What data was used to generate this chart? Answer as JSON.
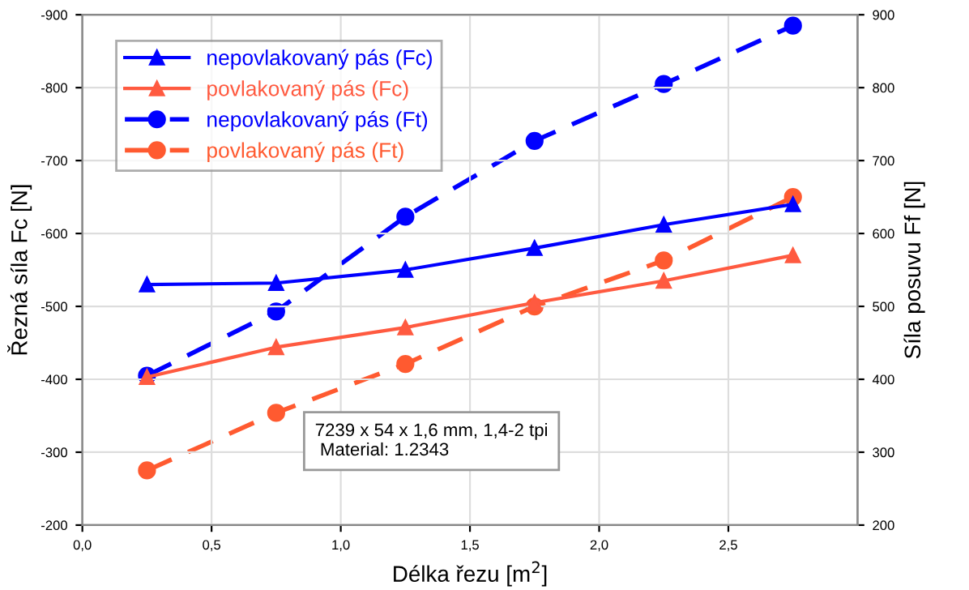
{
  "chart_data": {
    "type": "line",
    "xlabel": "Délka řezu [m$^{2}$]",
    "ylabel": "Řezná síla Fc [N]",
    "y2label": "Síla posuvu Ff [N]",
    "x": [
      0.25,
      0.75,
      1.25,
      1.75,
      2.25,
      2.75
    ],
    "series": [
      {
        "name": "nepovlakovaný pás (Fc)",
        "color": "#0000ff",
        "values": [
          -530,
          -532,
          -550,
          -580,
          -612,
          -640
        ],
        "marker": "triangle",
        "line_style": "solid"
      },
      {
        "name": "povlakovaný pás (Fc)",
        "color": "#ff5a40",
        "values": [
          -403,
          -444,
          -471,
          -505,
          -535,
          -570
        ],
        "marker": "triangle",
        "line_style": "solid"
      },
      {
        "name": "nepovlakovaný pás (Ft)",
        "color": "#0000ff",
        "values": [
          405,
          493,
          623,
          727,
          805,
          885
        ],
        "marker": "circle",
        "line_style": "dashed",
        "axis": "y2"
      },
      {
        "name": "povlakovaný pás (Ft)",
        "color": "#ff5a30",
        "values": [
          275,
          354,
          421,
          500,
          563,
          650
        ],
        "marker": "circle",
        "line_style": "dashed",
        "axis": "y2"
      }
    ],
    "xlim": [
      0,
      3
    ],
    "xticks": [
      {
        "value": 0,
        "label": "0,0"
      },
      {
        "value": 0.5,
        "label": "0,5"
      },
      {
        "value": 1,
        "label": "1,0"
      },
      {
        "value": 1.5,
        "label": "1,5"
      },
      {
        "value": 2,
        "label": "2,0"
      },
      {
        "value": 2.5,
        "label": "2,5"
      }
    ],
    "ylim": [
      -200,
      -900
    ],
    "yticks": [
      -200,
      -300,
      -400,
      -500,
      -600,
      -700,
      -800,
      -900
    ],
    "y2lim": [
      200,
      900
    ],
    "y2ticks": [
      200,
      300,
      400,
      500,
      600,
      700,
      800,
      900
    ],
    "grid": true,
    "legend": "top left",
    "annotations": [
      "7239 x 54 x 1,6 mm, 1,4-2 tpi\n Material: 1.2343"
    ]
  }
}
